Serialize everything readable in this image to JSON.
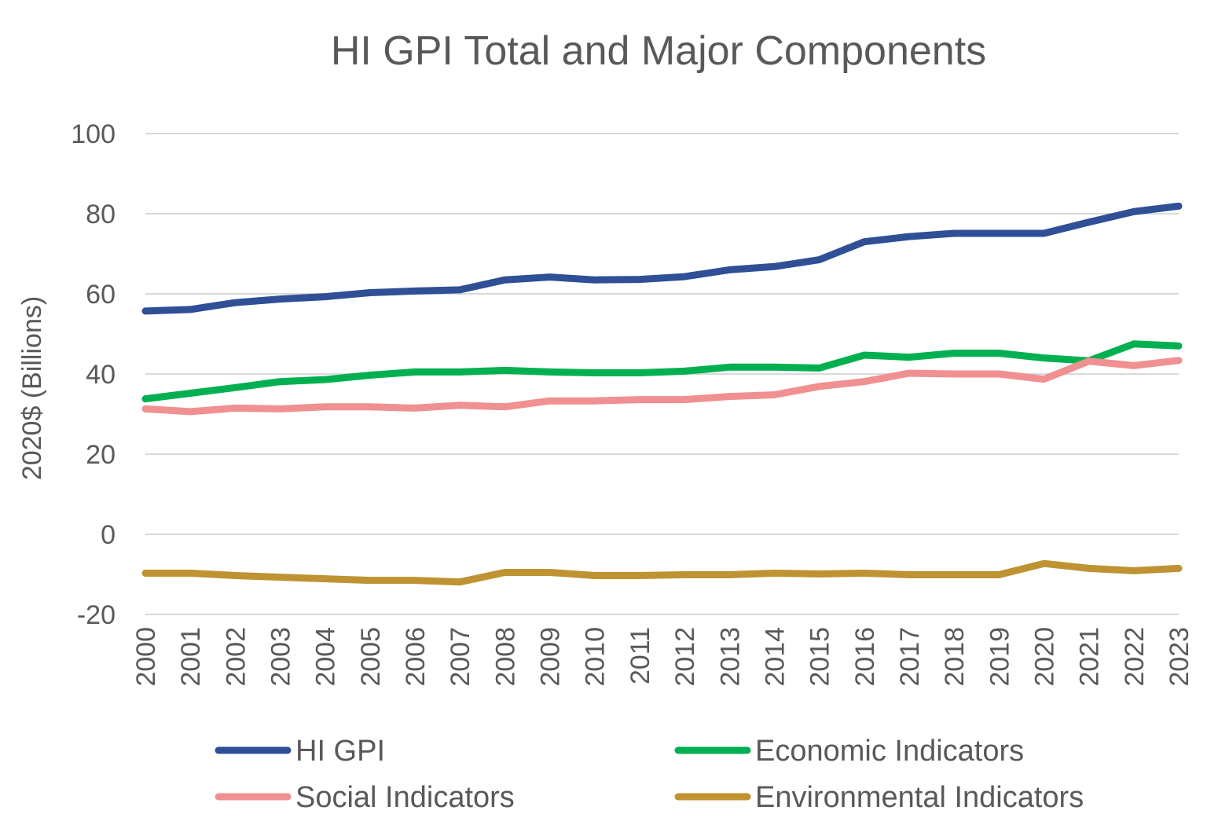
{
  "chart_data": {
    "type": "line",
    "title": "HI GPI Total and Major Components",
    "xlabel": "",
    "ylabel": "2020$ (Billions)",
    "ylim": [
      -20,
      100
    ],
    "yticks": [
      100,
      80,
      60,
      40,
      20,
      0,
      -20
    ],
    "grid": true,
    "legend_position": "bottom",
    "x": [
      "2000",
      "2001",
      "2002",
      "2003",
      "2004",
      "2005",
      "2006",
      "2007",
      "2008",
      "2009",
      "2010",
      "2011",
      "2012",
      "2013",
      "2014",
      "2015",
      "2016",
      "2017",
      "2018",
      "2019",
      "2020",
      "2021",
      "2022",
      "2023"
    ],
    "series": [
      {
        "name": "HI GPI",
        "color": "#2F4F96",
        "values": [
          55.7,
          56.1,
          57.8,
          58.7,
          59.3,
          60.3,
          60.7,
          61.0,
          63.5,
          64.2,
          63.5,
          63.6,
          64.3,
          66.0,
          66.8,
          68.5,
          73.0,
          74.3,
          75.1,
          75.1,
          75.1,
          77.9,
          80.5,
          81.9
        ]
      },
      {
        "name": "Economic Indicators",
        "color": "#00B050",
        "values": [
          33.8,
          35.2,
          36.6,
          38.1,
          38.6,
          39.7,
          40.5,
          40.5,
          40.9,
          40.5,
          40.3,
          40.3,
          40.7,
          41.7,
          41.7,
          41.5,
          44.7,
          44.2,
          45.2,
          45.2,
          44.0,
          43.3,
          47.5,
          47.0
        ]
      },
      {
        "name": "Social Indicators",
        "color": "#F09090",
        "values": [
          31.3,
          30.6,
          31.5,
          31.3,
          31.8,
          31.8,
          31.5,
          32.2,
          31.8,
          33.3,
          33.3,
          33.6,
          33.6,
          34.4,
          34.8,
          36.9,
          38.1,
          40.2,
          40.0,
          40.0,
          38.7,
          43.2,
          42.1,
          43.4
        ]
      },
      {
        "name": "Environmental Indicators",
        "color": "#BF9232",
        "values": [
          -9.7,
          -9.7,
          -10.3,
          -10.7,
          -11.1,
          -11.5,
          -11.5,
          -11.9,
          -9.5,
          -9.5,
          -10.3,
          -10.3,
          -10.1,
          -10.1,
          -9.7,
          -9.9,
          -9.7,
          -10.1,
          -10.1,
          -10.1,
          -7.3,
          -8.5,
          -9.1,
          -8.5
        ]
      }
    ]
  }
}
